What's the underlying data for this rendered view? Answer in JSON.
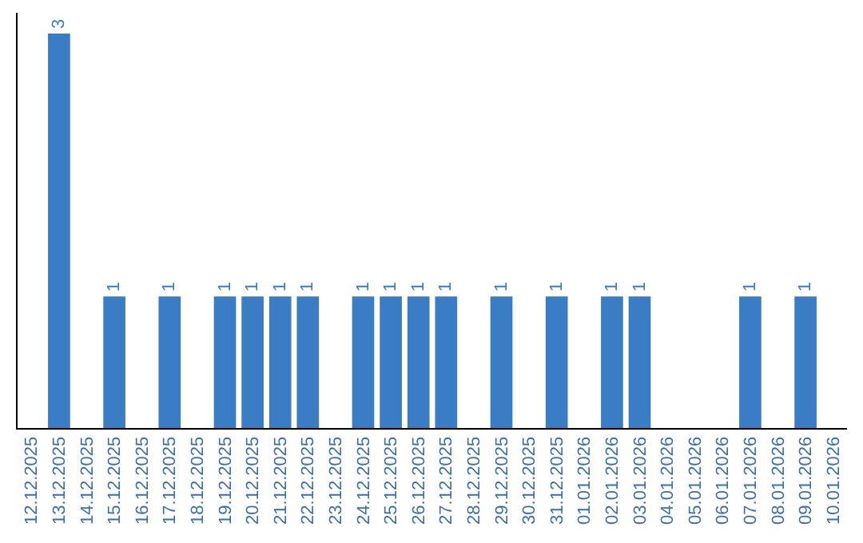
{
  "chart_data": {
    "type": "bar",
    "categories": [
      "12.12.2025",
      "13.12.2025",
      "14.12.2025",
      "15.12.2025",
      "16.12.2025",
      "17.12.2025",
      "18.12.2025",
      "19.12.2025",
      "20.12.2025",
      "21.12.2025",
      "22.12.2025",
      "23.12.2025",
      "24.12.2025",
      "25.12.2025",
      "26.12.2025",
      "27.12.2025",
      "28.12.2025",
      "29.12.2025",
      "30.12.2025",
      "31.12.2025",
      "01.01.2026",
      "02.01.2026",
      "03.01.2026",
      "04.01.2026",
      "05.01.2026",
      "06.01.2026",
      "07.01.2026",
      "08.01.2026",
      "09.01.2026",
      "10.01.2026"
    ],
    "values": [
      0,
      3,
      0,
      1,
      0,
      1,
      0,
      1,
      1,
      1,
      1,
      0,
      1,
      1,
      1,
      1,
      0,
      1,
      0,
      1,
      0,
      1,
      1,
      0,
      0,
      0,
      1,
      0,
      1,
      0
    ],
    "value_labels": [
      null,
      "3",
      null,
      "1",
      null,
      "1",
      null,
      "1",
      "1",
      "1",
      "1",
      null,
      "1",
      "1",
      "1",
      "1",
      null,
      "1",
      null,
      "1",
      null,
      "1",
      "1",
      null,
      null,
      null,
      "1",
      null,
      "1",
      null
    ],
    "color": "#3b7dc4",
    "tick_labels": "x"
  }
}
